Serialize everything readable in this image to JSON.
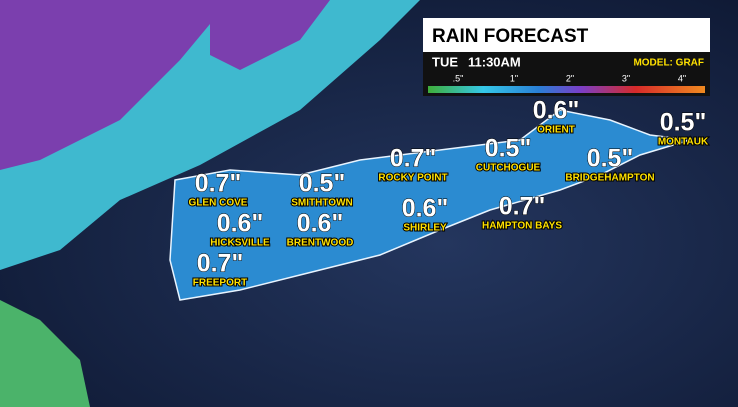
{
  "header": {
    "title": "RAIN FORECAST",
    "day": "TUE",
    "time": "11:30AM",
    "model": "MODEL: GRAF"
  },
  "legend": [
    ".5\"",
    "1\"",
    "2\"",
    "3\"",
    "4\""
  ],
  "locations": [
    {
      "name": "GLEN COVE",
      "amount": "0.7\""
    },
    {
      "name": "SMITHTOWN",
      "amount": "0.5\""
    },
    {
      "name": "ROCKY POINT",
      "amount": "0.7\""
    },
    {
      "name": "CUTCHOGUE",
      "amount": "0.5\""
    },
    {
      "name": "ORIENT",
      "amount": "0.6\""
    },
    {
      "name": "MONTAUK",
      "amount": "0.5\""
    },
    {
      "name": "BRIDGEHAMPTON",
      "amount": "0.5\""
    },
    {
      "name": "HICKSVILLE",
      "amount": "0.6\""
    },
    {
      "name": "BRENTWOOD",
      "amount": "0.6\""
    },
    {
      "name": "SHIRLEY",
      "amount": "0.6\""
    },
    {
      "name": "HAMPTON BAYS",
      "amount": "0.7\""
    },
    {
      "name": "FREEPORT",
      "amount": "0.7\""
    }
  ]
}
